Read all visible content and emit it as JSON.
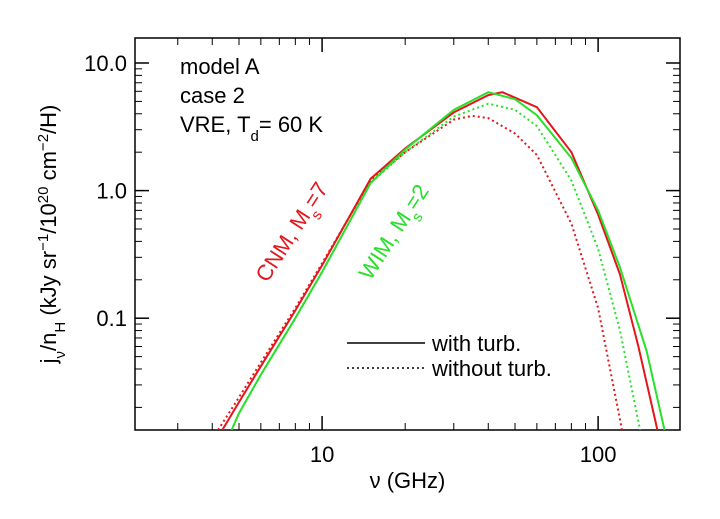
{
  "chart_data": {
    "type": "line",
    "xlabel": [
      {
        "text": "ν (GHz)"
      }
    ],
    "ylabel": [
      {
        "text": "j"
      },
      {
        "text": "ν",
        "shift": "sub"
      },
      {
        "text": "/n"
      },
      {
        "text": "H",
        "shift": "sub"
      },
      {
        "text": " (kJy sr"
      },
      {
        "text": "−1",
        "shift": "super"
      },
      {
        "text": "/10"
      },
      {
        "text": "20",
        "shift": "super"
      },
      {
        "text": " cm"
      },
      {
        "text": "−2",
        "shift": "super"
      },
      {
        "text": "/H)"
      }
    ],
    "xlog": true,
    "ylog": true,
    "xlim": [
      2.1,
      198
    ],
    "ylim": [
      0.0133,
      15.7
    ],
    "xticks": [
      10,
      100
    ],
    "yticks": [
      {
        "value": 10,
        "label": "10.0"
      },
      {
        "value": 1,
        "label": "1.0"
      },
      0.1
    ],
    "xminorticks": [
      3,
      4,
      5,
      6,
      7,
      8,
      9,
      20,
      30,
      40,
      50,
      60,
      70,
      80,
      90
    ],
    "yminorticks": [
      0.02,
      0.03,
      0.04,
      0.05,
      0.06,
      0.07,
      0.08,
      0.09,
      0.2,
      0.3,
      0.4,
      0.5,
      0.6,
      0.7,
      0.8,
      0.9,
      2,
      3,
      4,
      5,
      6,
      7,
      8,
      9
    ],
    "text_box": [
      [
        {
          "text": "model A"
        }
      ],
      [
        {
          "text": "case 2"
        }
      ],
      [
        {
          "text": "VRE, T"
        },
        {
          "text": "d",
          "shift": "sub"
        },
        {
          "text": "= 60 K"
        }
      ]
    ],
    "annotations": [
      {
        "parts": [
          {
            "text": "CNM, M"
          },
          {
            "text": "s",
            "shift": "sub"
          },
          {
            "text": "=7"
          }
        ],
        "color": "#e3171b"
      },
      {
        "parts": [
          {
            "text": "WIM, M"
          },
          {
            "text": "s",
            "shift": "sub"
          },
          {
            "text": "=2"
          }
        ],
        "color": "#27e02a"
      }
    ],
    "legend": [
      {
        "label": "with turb.",
        "dash": "solid"
      },
      {
        "label": "without turb.",
        "dash": "dotted"
      }
    ],
    "series": [
      {
        "color": "#e3171b",
        "dash": "solid",
        "x": [
          4.35,
          5,
          6,
          8,
          10,
          15,
          20,
          30,
          40,
          45,
          60,
          80,
          100,
          120,
          140,
          164
        ],
        "values": [
          0.0133,
          0.022,
          0.042,
          0.115,
          0.26,
          1.24,
          2.14,
          4.1,
          5.6,
          5.9,
          4.5,
          2.0,
          0.65,
          0.22,
          0.06,
          0.0133
        ]
      },
      {
        "color": "#e3171b",
        "dash": "dotted",
        "x": [
          4.2,
          5,
          6,
          8,
          10,
          15,
          20,
          30,
          35,
          40,
          50,
          60,
          80,
          100,
          122
        ],
        "values": [
          0.0133,
          0.024,
          0.045,
          0.12,
          0.27,
          1.2,
          2.0,
          3.6,
          3.85,
          3.7,
          2.8,
          1.9,
          0.55,
          0.12,
          0.0133
        ]
      },
      {
        "color": "#27e02a",
        "dash": "solid",
        "x": [
          4.7,
          5,
          6,
          8,
          10,
          15,
          20,
          30,
          40,
          50,
          60,
          80,
          100,
          120,
          150,
          174
        ],
        "values": [
          0.0133,
          0.018,
          0.036,
          0.1,
          0.23,
          1.15,
          2.1,
          4.3,
          5.9,
          5.2,
          3.9,
          1.8,
          0.7,
          0.25,
          0.055,
          0.0133
        ]
      },
      {
        "color": "#27e02a",
        "dash": "dotted",
        "x": [
          4.7,
          5,
          6,
          8,
          10,
          15,
          20,
          30,
          40,
          50,
          60,
          80,
          100,
          120,
          142
        ],
        "values": [
          0.0133,
          0.018,
          0.036,
          0.1,
          0.23,
          1.15,
          2.0,
          3.8,
          4.8,
          4.3,
          3.2,
          1.2,
          0.35,
          0.08,
          0.0133
        ]
      }
    ]
  }
}
